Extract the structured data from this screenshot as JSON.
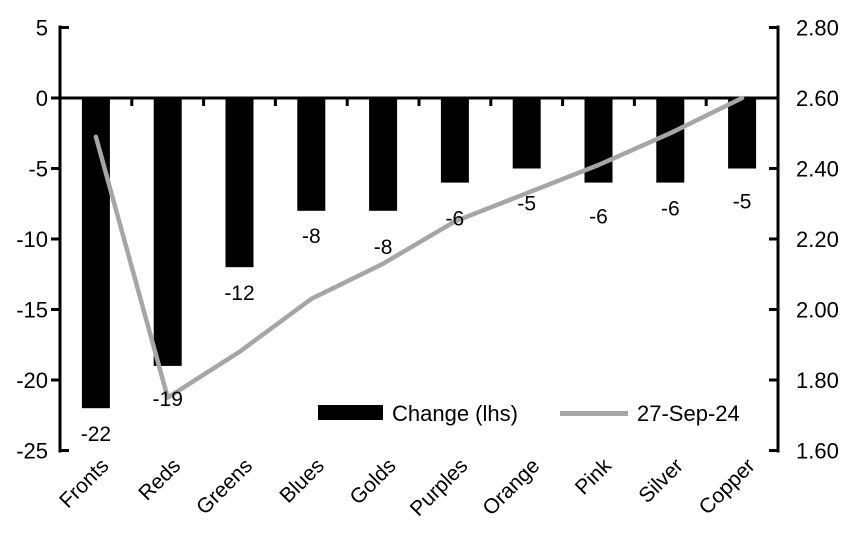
{
  "chart_data": {
    "type": "combo",
    "title": "",
    "categories": [
      "Fronts",
      "Reds",
      "Greens",
      "Blues",
      "Golds",
      "Purples",
      "Orange",
      "Pink",
      "Silver",
      "Copper"
    ],
    "series": [
      {
        "name": "Change (lhs)",
        "type": "bar",
        "axis": "left",
        "color": "#000000",
        "values": [
          -22,
          -19,
          -12,
          -8,
          -8,
          -6,
          -5,
          -6,
          -6,
          -5
        ],
        "data_labels": [
          "-22",
          "-19",
          "-12",
          "-8",
          "-8",
          "-6",
          "-5",
          "-6",
          "-6",
          "-5"
        ]
      },
      {
        "name": "27-Sep-24",
        "type": "line",
        "axis": "right",
        "color": "#a6a6a6",
        "values": [
          2.49,
          1.75,
          1.88,
          2.03,
          2.13,
          2.25,
          2.33,
          2.41,
          2.5,
          2.6
        ]
      }
    ],
    "left_axis": {
      "min": -25,
      "max": 5,
      "step": 5,
      "tick_labels": [
        "5",
        "0",
        "-5",
        "-10",
        "-15",
        "-20",
        "-25"
      ]
    },
    "right_axis": {
      "min": 1.6,
      "max": 2.8,
      "step": 0.2,
      "tick_labels": [
        "2.80",
        "2.60",
        "2.40",
        "2.20",
        "2.00",
        "1.80",
        "1.60"
      ]
    },
    "legend": {
      "position": "bottom-inside",
      "items": [
        {
          "label": "Change (lhs)",
          "swatch": "bar",
          "color": "#000000"
        },
        {
          "label": "27-Sep-24",
          "swatch": "line",
          "color": "#a6a6a6"
        }
      ]
    },
    "grid": false,
    "background": "#ffffff",
    "axis_color": "#000000",
    "layout_hints": {
      "bar_label_dy": [
        25,
        32,
        25,
        24,
        35,
        35,
        34,
        33,
        25,
        32
      ],
      "x_labels_rotation_deg": -45
    }
  }
}
